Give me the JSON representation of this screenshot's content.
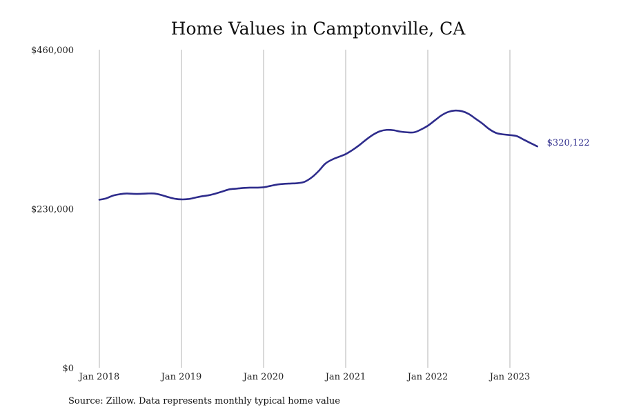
{
  "colors": {
    "line": "#2e2c8c",
    "grid": "#b3b3b3",
    "text": "#222222"
  },
  "chart_data": {
    "type": "line",
    "title": "Home Values in Camptonville, CA",
    "xlabel": "",
    "ylabel": "",
    "ylim": [
      0,
      460000
    ],
    "y_ticks": [
      {
        "value": 0,
        "label": "$0"
      },
      {
        "value": 230000,
        "label": "$230,000"
      },
      {
        "value": 460000,
        "label": "$460,000"
      }
    ],
    "x_ticks": [
      {
        "value": "2018-01",
        "label": "Jan 2018"
      },
      {
        "value": "2019-01",
        "label": "Jan 2019"
      },
      {
        "value": "2020-01",
        "label": "Jan 2020"
      },
      {
        "value": "2021-01",
        "label": "Jan 2021"
      },
      {
        "value": "2022-01",
        "label": "Jan 2022"
      },
      {
        "value": "2023-01",
        "label": "Jan 2023"
      }
    ],
    "grid": {
      "vertical": true,
      "horizontal": false
    },
    "legend": "none",
    "series": [
      {
        "x": [
          "2018-01",
          "2018-02",
          "2018-03",
          "2018-04",
          "2018-05",
          "2018-06",
          "2018-07",
          "2018-08",
          "2018-09",
          "2018-10",
          "2018-11",
          "2018-12",
          "2019-01",
          "2019-02",
          "2019-03",
          "2019-04",
          "2019-05",
          "2019-06",
          "2019-07",
          "2019-08",
          "2019-09",
          "2019-10",
          "2019-11",
          "2019-12",
          "2020-01",
          "2020-02",
          "2020-03",
          "2020-04",
          "2020-05",
          "2020-06",
          "2020-07",
          "2020-08",
          "2020-09",
          "2020-10",
          "2020-11",
          "2020-12",
          "2021-01",
          "2021-02",
          "2021-03",
          "2021-04",
          "2021-05",
          "2021-06",
          "2021-07",
          "2021-08",
          "2021-09",
          "2021-10",
          "2021-11",
          "2021-12",
          "2022-01",
          "2022-02",
          "2022-03",
          "2022-04",
          "2022-05",
          "2022-06",
          "2022-07",
          "2022-08",
          "2022-09",
          "2022-10",
          "2022-11",
          "2022-12",
          "2023-01",
          "2023-02",
          "2023-03",
          "2023-04",
          "2023-05"
        ],
        "values": [
          243000,
          245000,
          249000,
          251000,
          252000,
          251500,
          251500,
          252000,
          252000,
          250000,
          247000,
          244500,
          243500,
          244000,
          246000,
          248000,
          249500,
          252000,
          255000,
          258000,
          259000,
          260000,
          260500,
          260500,
          261000,
          263000,
          265000,
          266000,
          266500,
          267000,
          269000,
          275000,
          284000,
          295000,
          301000,
          305000,
          309000,
          315000,
          322000,
          330000,
          337000,
          342000,
          344000,
          343500,
          341500,
          340500,
          340500,
          344500,
          350000,
          357500,
          365000,
          370000,
          372000,
          371000,
          367000,
          360000,
          353000,
          345000,
          339500,
          337500,
          336500,
          335000,
          330000,
          325000,
          320122
        ],
        "end_label": "$320,122"
      }
    ]
  },
  "source": "Source: Zillow. Data represents monthly typical home value"
}
